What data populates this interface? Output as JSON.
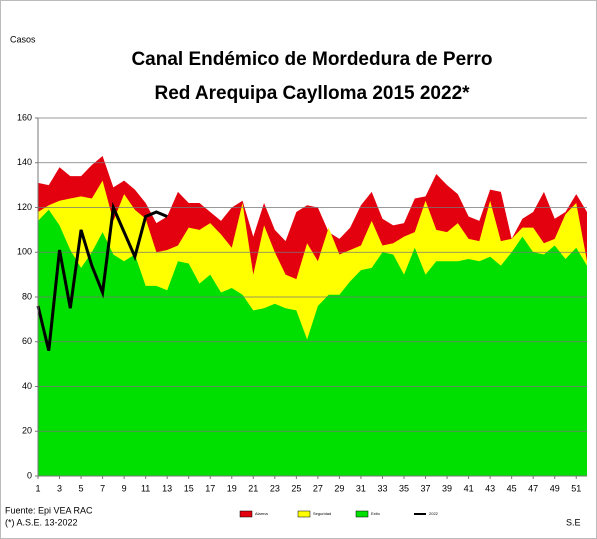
{
  "chart_data": {
    "type": "area",
    "title": "Canal Endémico de Mordedura de Perro",
    "subtitle": "Red Arequipa Caylloma 2015 2022*",
    "y_label": "Casos",
    "x_label": "S.E",
    "source": "Fuente: Epi VEA RAC",
    "note": "(*) A.S.E. 13-2022",
    "x": [
      1,
      2,
      3,
      4,
      5,
      6,
      7,
      8,
      9,
      10,
      11,
      12,
      13,
      14,
      15,
      16,
      17,
      18,
      19,
      20,
      21,
      22,
      23,
      24,
      25,
      26,
      27,
      28,
      29,
      30,
      31,
      32,
      33,
      34,
      35,
      36,
      37,
      38,
      39,
      40,
      41,
      42,
      43,
      44,
      45,
      46,
      47,
      48,
      49,
      50,
      51,
      52
    ],
    "xlim": [
      1,
      52
    ],
    "xticks": [
      1,
      3,
      5,
      7,
      9,
      11,
      13,
      15,
      17,
      19,
      21,
      23,
      25,
      27,
      29,
      31,
      33,
      35,
      37,
      39,
      41,
      43,
      45,
      47,
      49,
      51
    ],
    "ylim": [
      0,
      160
    ],
    "yticks": [
      0,
      20,
      40,
      60,
      80,
      100,
      120,
      140,
      160
    ],
    "grid": true,
    "legend": "bottom",
    "series": [
      {
        "name": "Alarma",
        "color": "#e3000f",
        "values": [
          131,
          130,
          138,
          134,
          134,
          139,
          143,
          129,
          132,
          128,
          122,
          113,
          116,
          127,
          122,
          122,
          118,
          114,
          120,
          123,
          107,
          122,
          110,
          105,
          118,
          121,
          120,
          109,
          106,
          111,
          121,
          127,
          115,
          112,
          113,
          124,
          125,
          135,
          130,
          126,
          116,
          114,
          128,
          127,
          106,
          115,
          118,
          127,
          115,
          118,
          126,
          118
        ]
      },
      {
        "name": "Seguridad",
        "color": "#ffff00",
        "values": [
          118,
          121,
          123,
          124,
          125,
          124,
          132,
          114,
          126,
          119,
          115,
          100,
          101,
          103,
          111,
          110,
          113,
          108,
          102,
          122,
          90,
          112,
          100,
          90,
          88,
          104,
          96,
          111,
          99,
          101,
          103,
          114,
          103,
          104,
          107,
          109,
          123,
          110,
          109,
          113,
          106,
          105,
          123,
          105,
          106,
          111,
          111,
          104,
          106,
          117,
          122,
          96
        ]
      },
      {
        "name": "Exito",
        "color": "#00e000",
        "values": [
          114,
          119,
          112,
          101,
          93,
          100,
          109,
          99,
          96,
          99,
          85,
          85,
          83,
          96,
          95,
          86,
          90,
          82,
          84,
          81,
          74,
          75,
          77,
          75,
          74,
          61,
          76,
          81,
          81,
          87,
          92,
          93,
          100,
          99,
          90,
          102,
          90,
          96,
          96,
          96,
          97,
          96,
          98,
          94,
          100,
          107,
          100,
          99,
          103,
          97,
          102,
          94
        ]
      },
      {
        "name": "2022",
        "color": "#000000",
        "line": true,
        "values": [
          76,
          56,
          101,
          75,
          110,
          94,
          82,
          120,
          109,
          98,
          116,
          118,
          116,
          null,
          null,
          null,
          null,
          null,
          null,
          null,
          null,
          null,
          null,
          null,
          null,
          null,
          null,
          null,
          null,
          null,
          null,
          null,
          null,
          null,
          null,
          null,
          null,
          null,
          null,
          null,
          null,
          null,
          null,
          null,
          null,
          null,
          null,
          null,
          null,
          null,
          null,
          null
        ]
      }
    ]
  }
}
